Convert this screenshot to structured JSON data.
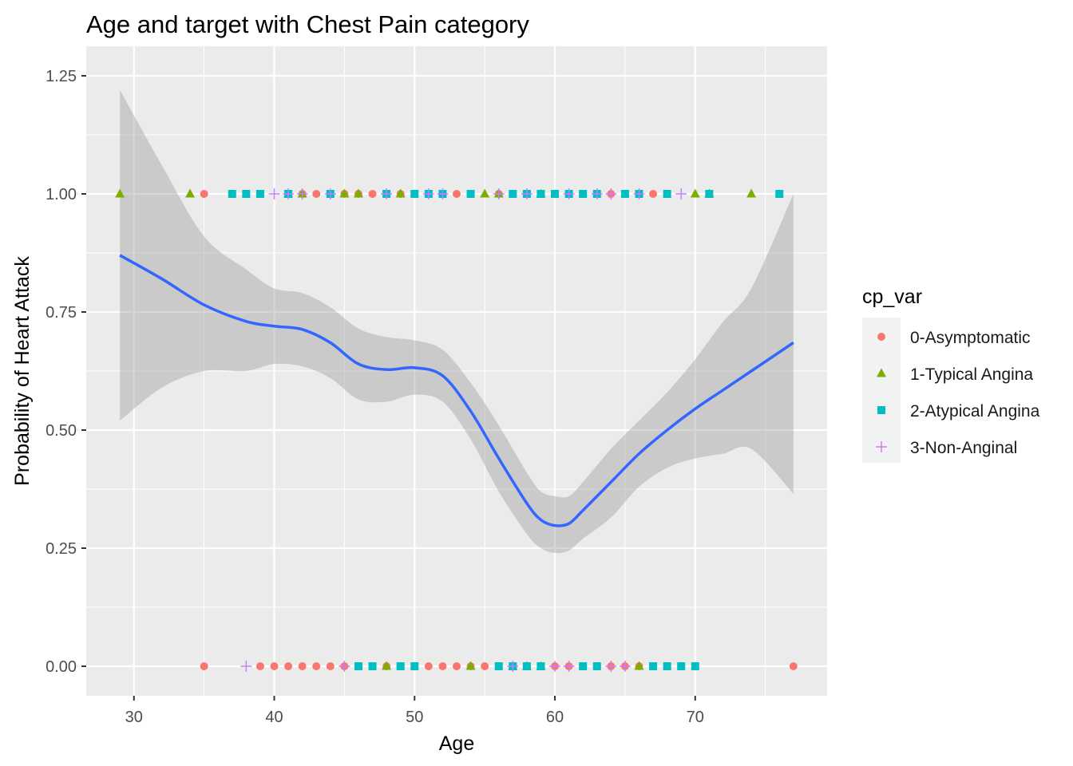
{
  "chart_data": {
    "type": "scatter",
    "title": "Age and target with Chest Pain category",
    "xlabel": "Age",
    "ylabel": "Probability of Heart Attack",
    "xlim": [
      26.6,
      79.4
    ],
    "ylim": [
      -0.0625,
      1.3125
    ],
    "x_ticks": [
      30,
      40,
      50,
      60,
      70
    ],
    "y_ticks": [
      0.0,
      0.25,
      0.5,
      0.75,
      1.0,
      1.25
    ],
    "y_tick_labels": [
      "0.00",
      "0.25",
      "0.50",
      "0.75",
      "1.00",
      "1.25"
    ],
    "grid": true,
    "legend": {
      "title": "cp_var",
      "placement": "right"
    },
    "series": [
      {
        "name": "0-Asymptomatic",
        "marker": "circle",
        "color": "#F8766D",
        "points": [
          [
            35,
            1
          ],
          [
            41,
            1
          ],
          [
            42,
            1
          ],
          [
            43,
            1
          ],
          [
            44,
            1
          ],
          [
            45,
            1
          ],
          [
            46,
            1
          ],
          [
            47,
            1
          ],
          [
            49,
            1
          ],
          [
            50,
            1
          ],
          [
            52,
            1
          ],
          [
            53,
            1
          ],
          [
            54,
            1
          ],
          [
            56,
            1
          ],
          [
            57,
            1
          ],
          [
            58,
            1
          ],
          [
            59,
            1
          ],
          [
            60,
            1
          ],
          [
            62,
            1
          ],
          [
            63,
            1
          ],
          [
            64,
            1
          ],
          [
            66,
            1
          ],
          [
            67,
            1
          ],
          [
            35,
            0
          ],
          [
            39,
            0
          ],
          [
            40,
            0
          ],
          [
            41,
            0
          ],
          [
            42,
            0
          ],
          [
            43,
            0
          ],
          [
            44,
            0
          ],
          [
            45,
            0
          ],
          [
            46,
            0
          ],
          [
            47,
            0
          ],
          [
            48,
            0
          ],
          [
            49,
            0
          ],
          [
            51,
            0
          ],
          [
            52,
            0
          ],
          [
            53,
            0
          ],
          [
            54,
            0
          ],
          [
            55,
            0
          ],
          [
            56,
            0
          ],
          [
            57,
            0
          ],
          [
            58,
            0
          ],
          [
            59,
            0
          ],
          [
            60,
            0
          ],
          [
            61,
            0
          ],
          [
            62,
            0
          ],
          [
            63,
            0
          ],
          [
            64,
            0
          ],
          [
            65,
            0
          ],
          [
            66,
            0
          ],
          [
            67,
            0
          ],
          [
            77,
            0
          ]
        ]
      },
      {
        "name": "1-Typical Angina",
        "marker": "triangle",
        "color": "#7CAE00",
        "points": [
          [
            29,
            1
          ],
          [
            34,
            1
          ],
          [
            41,
            1
          ],
          [
            42,
            1
          ],
          [
            45,
            1
          ],
          [
            46,
            1
          ],
          [
            49,
            1
          ],
          [
            55,
            1
          ],
          [
            56,
            1
          ],
          [
            59,
            1
          ],
          [
            70,
            1
          ],
          [
            71,
            1
          ],
          [
            74,
            1
          ],
          [
            48,
            0
          ],
          [
            54,
            0
          ],
          [
            57,
            0
          ],
          [
            58,
            0
          ],
          [
            59,
            0
          ],
          [
            66,
            0
          ]
        ]
      },
      {
        "name": "2-Atypical Angina",
        "marker": "square",
        "color": "#00BFC4",
        "points": [
          [
            37,
            1
          ],
          [
            38,
            1
          ],
          [
            39,
            1
          ],
          [
            41,
            1
          ],
          [
            44,
            1
          ],
          [
            48,
            1
          ],
          [
            50,
            1
          ],
          [
            51,
            1
          ],
          [
            52,
            1
          ],
          [
            54,
            1
          ],
          [
            57,
            1
          ],
          [
            58,
            1
          ],
          [
            59,
            1
          ],
          [
            60,
            1
          ],
          [
            61,
            1
          ],
          [
            62,
            1
          ],
          [
            63,
            1
          ],
          [
            65,
            1
          ],
          [
            66,
            1
          ],
          [
            68,
            1
          ],
          [
            71,
            1
          ],
          [
            76,
            1
          ],
          [
            46,
            0
          ],
          [
            47,
            0
          ],
          [
            49,
            0
          ],
          [
            50,
            0
          ],
          [
            56,
            0
          ],
          [
            57,
            0
          ],
          [
            58,
            0
          ],
          [
            59,
            0
          ],
          [
            62,
            0
          ],
          [
            63,
            0
          ],
          [
            67,
            0
          ],
          [
            68,
            0
          ],
          [
            69,
            0
          ],
          [
            70,
            0
          ]
        ]
      },
      {
        "name": "3-Non-Anginal",
        "marker": "plus",
        "color": "#C77CFF",
        "points": [
          [
            40,
            1
          ],
          [
            41,
            1
          ],
          [
            42,
            1
          ],
          [
            44,
            1
          ],
          [
            48,
            1
          ],
          [
            51,
            1
          ],
          [
            52,
            1
          ],
          [
            56,
            1
          ],
          [
            58,
            1
          ],
          [
            61,
            1
          ],
          [
            63,
            1
          ],
          [
            64,
            1
          ],
          [
            66,
            1
          ],
          [
            69,
            1
          ],
          [
            38,
            0
          ],
          [
            45,
            0
          ],
          [
            57,
            0
          ],
          [
            60,
            0
          ],
          [
            61,
            0
          ],
          [
            64,
            0
          ],
          [
            65,
            0
          ]
        ]
      }
    ],
    "smooth": {
      "color": "#3366FF",
      "band_color": "#999999",
      "x": [
        29,
        32,
        35,
        38,
        40,
        42,
        44,
        46,
        48,
        50,
        52,
        54,
        56,
        58,
        59,
        60,
        61,
        62,
        64,
        66,
        68,
        70,
        72,
        74,
        77
      ],
      "y": [
        0.87,
        0.82,
        0.765,
        0.73,
        0.72,
        0.713,
        0.685,
        0.64,
        0.628,
        0.632,
        0.615,
        0.54,
        0.44,
        0.345,
        0.31,
        0.298,
        0.302,
        0.33,
        0.39,
        0.45,
        0.5,
        0.545,
        0.585,
        0.625,
        0.685
      ],
      "lower": [
        0.52,
        0.59,
        0.625,
        0.625,
        0.64,
        0.635,
        0.61,
        0.565,
        0.56,
        0.575,
        0.56,
        0.48,
        0.37,
        0.28,
        0.25,
        0.24,
        0.245,
        0.27,
        0.315,
        0.38,
        0.42,
        0.44,
        0.45,
        0.46,
        0.365
      ],
      "upper": [
        1.22,
        1.06,
        0.91,
        0.84,
        0.8,
        0.79,
        0.76,
        0.715,
        0.697,
        0.69,
        0.67,
        0.6,
        0.51,
        0.41,
        0.37,
        0.36,
        0.36,
        0.39,
        0.46,
        0.52,
        0.58,
        0.65,
        0.73,
        0.8,
        1.0
      ]
    }
  }
}
